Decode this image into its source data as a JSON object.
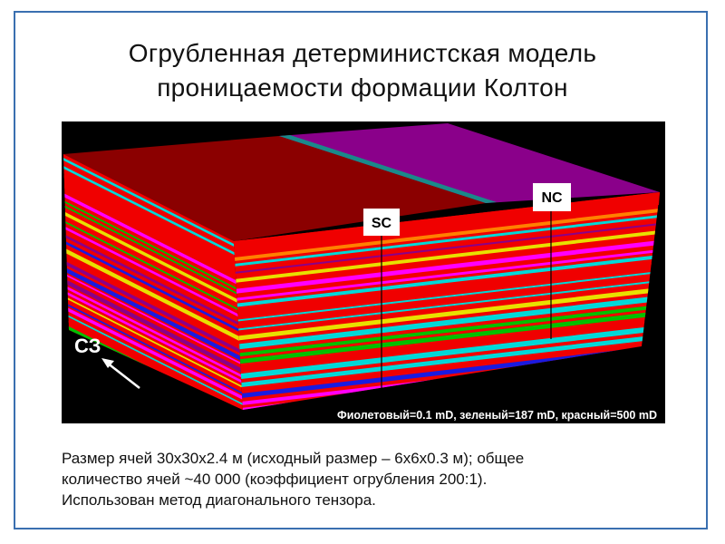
{
  "slide": {
    "title_lines": [
      "Огрубленная детерминистская модель",
      "проницаемости формации Колтон"
    ],
    "figure": {
      "well_labels": [
        "SC",
        "NC"
      ],
      "direction_label": "СЗ",
      "legend": "Фиолетовый=0.1 mD, зеленый=187 mD, красный=500 mD",
      "colors": {
        "red": "#f00000",
        "dark_red": "#8b0000",
        "purple": "#8a008a",
        "magenta": "#ff00ff",
        "green": "#00c000",
        "yellow": "#e8e000",
        "blue": "#1a1ae0",
        "cyan": "#00d8d8",
        "teal": "#1a8a8a",
        "orange": "#ff8000"
      }
    },
    "caption_lines": [
      "Размер ячей 30x30x2.4 м (исходный размер – 6x6x0.3 м); общее",
      "количество ячей ~40 000 (коэффициент огрубления 200:1).",
      "Использован метод диагонального тензора."
    ]
  }
}
